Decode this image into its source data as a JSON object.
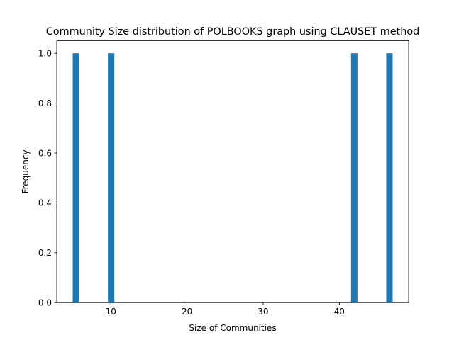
{
  "chart_data": {
    "type": "bar",
    "title": "Community Size distribution of POLBOOKS graph using CLAUSET method",
    "xlabel": "Size of Communities",
    "ylabel": "Frequency",
    "xlim": [
      2.9,
      49.1
    ],
    "ylim": [
      0,
      1.05
    ],
    "xticks": [
      10,
      20,
      30,
      40
    ],
    "xtick_labels": [
      "10",
      "20",
      "30",
      "40"
    ],
    "yticks": [
      0.0,
      0.2,
      0.4,
      0.6,
      0.8,
      1.0
    ],
    "ytick_labels": [
      "0.0",
      "0.2",
      "0.4",
      "0.6",
      "0.8",
      "1.0"
    ],
    "bin_width": 0.84,
    "bars": [
      {
        "x": 5.0,
        "value": 1
      },
      {
        "x": 9.62,
        "value": 1
      },
      {
        "x": 41.54,
        "value": 1
      },
      {
        "x": 46.16,
        "value": 1
      }
    ],
    "bar_color": "#1f77b4",
    "grid": false,
    "legend": "none"
  }
}
